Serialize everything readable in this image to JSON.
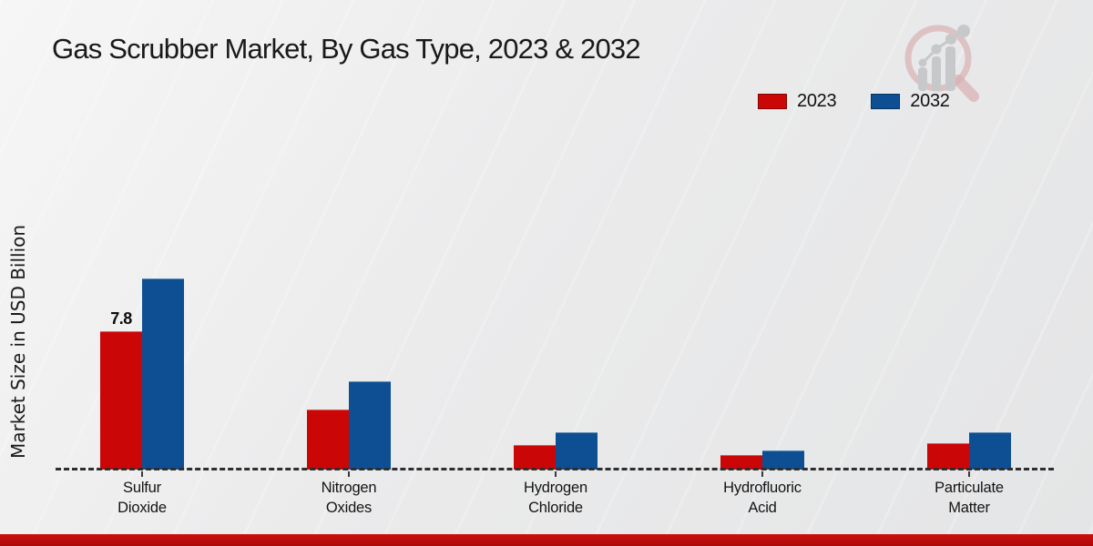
{
  "chart_data": {
    "type": "bar",
    "title": "Gas Scrubber Market, By Gas Type, 2023 & 2032",
    "ylabel": "Market Size in USD Billion",
    "xlabel": "",
    "categories": [
      "Sulfur Dioxide",
      "Nitrogen Oxides",
      "Hydrogen Chloride",
      "Hydrofluoric Acid",
      "Particulate Matter"
    ],
    "series": [
      {
        "name": "2023",
        "color": "#cb0606",
        "values": [
          7.8,
          3.4,
          1.4,
          0.8,
          1.5
        ]
      },
      {
        "name": "2032",
        "color": "#0e4f94",
        "values": [
          10.8,
          5.0,
          2.1,
          1.1,
          2.1
        ]
      }
    ],
    "data_labels": [
      {
        "series": "2023",
        "category": "Sulfur Dioxide",
        "text": "7.8"
      }
    ],
    "ylim": [
      0,
      12
    ],
    "grid": false,
    "legend_position": "top-right",
    "baseline_style": "dashed"
  },
  "branding": {
    "logo_icon": "magnifier-growth-chart",
    "logo_ring_color": "#d9b0b2",
    "logo_bars_color": "#c6c8ca",
    "footer_color": "#c10d0d"
  }
}
